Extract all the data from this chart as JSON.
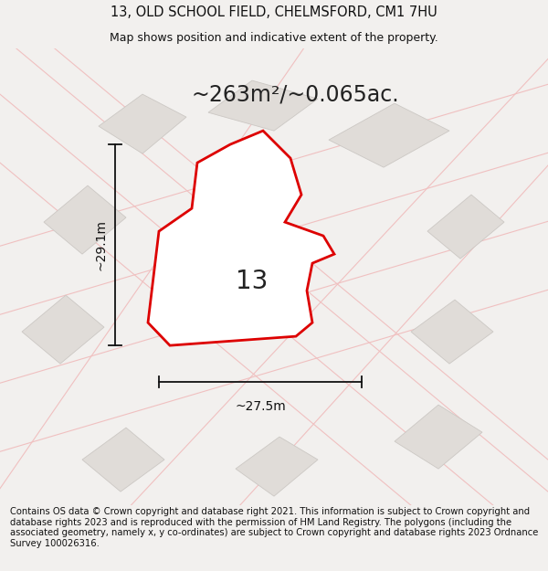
{
  "title": "13, OLD SCHOOL FIELD, CHELMSFORD, CM1 7HU",
  "subtitle": "Map shows position and indicative extent of the property.",
  "area_text": "~263m²/~0.065ac.",
  "width_label": "~27.5m",
  "height_label": "~29.1m",
  "property_label": "13",
  "footer": "Contains OS data © Crown copyright and database right 2021. This information is subject to Crown copyright and database rights 2023 and is reproduced with the permission of HM Land Registry. The polygons (including the associated geometry, namely x, y co-ordinates) are subject to Crown copyright and database rights 2023 Ordnance Survey 100026316.",
  "bg_color": "#f2f0ee",
  "map_bg": "#f2f0ee",
  "plot_fill": "#ffffff",
  "plot_edge": "#dd0000",
  "surrounding_fill": "#e0dcd8",
  "surrounding_edge": "#ccc8c4",
  "road_color": "#f0c0c0",
  "dim_color": "#111111",
  "title_fontsize": 10.5,
  "subtitle_fontsize": 9,
  "area_fontsize": 17,
  "label_fontsize": 10,
  "prop_label_fontsize": 20,
  "footer_fontsize": 7.2
}
